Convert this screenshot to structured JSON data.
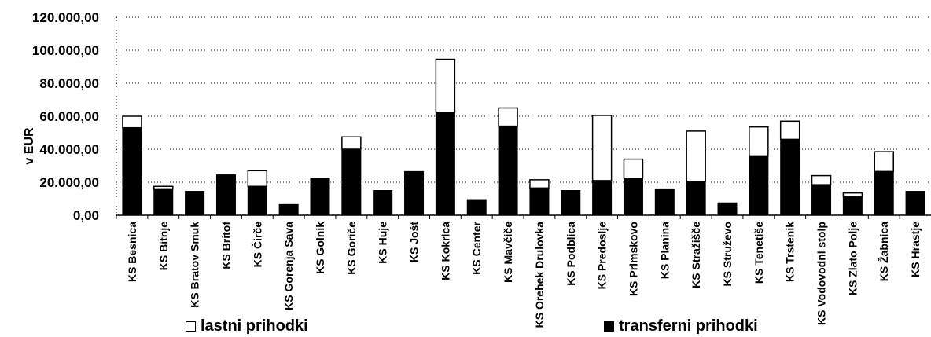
{
  "chart_data": {
    "type": "bar",
    "stacked": true,
    "title": "",
    "ylabel": "v EUR",
    "ylim": [
      0,
      120000
    ],
    "yticks": [
      0,
      20000,
      40000,
      60000,
      80000,
      100000,
      120000
    ],
    "ytick_labels": [
      "0,00",
      "20.000,00",
      "40.000,00",
      "60.000,00",
      "80.000,00",
      "100.000,00",
      "120.000,00"
    ],
    "grid": true,
    "legend_position": "bottom",
    "categories": [
      "KS Besnica",
      "KS Bitnje",
      "KS Bratov Smuk",
      "KS Britof",
      "KS Čirče",
      "KS Gorenja Sava",
      "KS Golnik",
      "KS Goriče",
      "KS Huje",
      "KS Jošt",
      "KS Kokrica",
      "KS Center",
      "KS Mavčiče",
      "KS Orehek Drulovka",
      "KS Podblica",
      "KS Predoslje",
      "KS Primskovo",
      "KS Planina",
      "KS Stražišče",
      "KS Struževo",
      "KS Tenetiše",
      "KS Trstenik",
      "KS Vodovodni stolp",
      "KS Zlato Polje",
      "KS Žabnica",
      "KS Hrastje"
    ],
    "series": [
      {
        "name": "transferni prihodki",
        "color": "#000000",
        "values": [
          53000,
          16000,
          14500,
          24500,
          17500,
          6500,
          22500,
          40000,
          15000,
          26500,
          62500,
          9500,
          54000,
          16500,
          15000,
          21000,
          22500,
          16000,
          20500,
          7500,
          36000,
          46000,
          18500,
          11500,
          26500,
          14500
        ]
      },
      {
        "name": "lastni prihodki",
        "color": "#ffffff",
        "values": [
          7000,
          1500,
          0,
          0,
          9500,
          0,
          0,
          7500,
          0,
          0,
          32000,
          0,
          11000,
          5000,
          0,
          39500,
          11500,
          0,
          30500,
          0,
          17500,
          11000,
          5500,
          2000,
          12000,
          0
        ]
      }
    ]
  },
  "legend": {
    "own_label": "lastni prihodki",
    "transfer_label": "transferni prihodki"
  }
}
